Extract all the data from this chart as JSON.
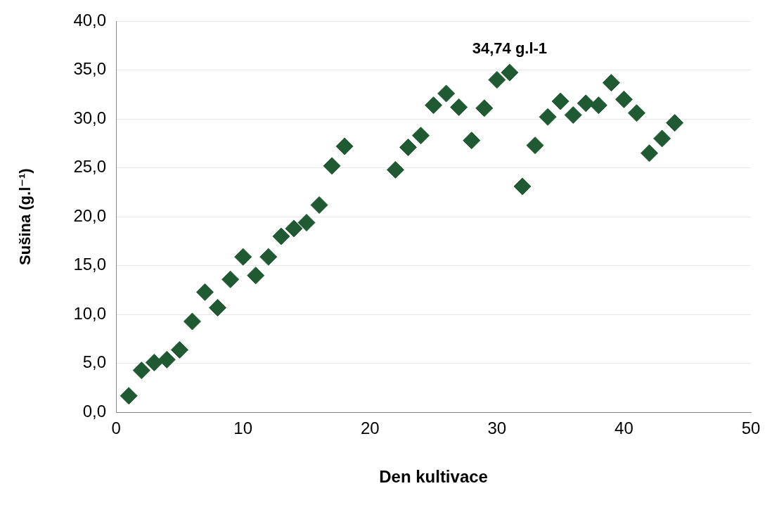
{
  "chart_data": {
    "type": "scatter",
    "xlabel": "Den kultivace",
    "ylabel": "Sušina (g.l⁻¹)",
    "x": [
      1,
      2,
      3,
      4,
      5,
      6,
      7,
      8,
      9,
      10,
      11,
      12,
      13,
      14,
      15,
      16,
      17,
      18,
      22,
      23,
      24,
      25,
      26,
      27,
      28,
      29,
      30,
      31,
      32,
      33,
      34,
      35,
      36,
      37,
      38,
      39,
      40,
      41,
      42,
      43,
      44
    ],
    "series": [
      {
        "color": "#1f5a32",
        "values": [
          1.7,
          4.3,
          5.1,
          5.4,
          6.4,
          9.3,
          12.3,
          10.7,
          13.6,
          15.9,
          14.0,
          15.9,
          18.0,
          18.8,
          19.4,
          21.2,
          25.2,
          27.2,
          24.8,
          27.1,
          28.3,
          31.4,
          32.6,
          31.2,
          27.8,
          31.1,
          34.0,
          34.74,
          23.1,
          27.3,
          30.2,
          31.8,
          30.4,
          31.6,
          31.4,
          33.7,
          32.0,
          30.6,
          26.5,
          28.0,
          29.6
        ]
      }
    ],
    "xlim": [
      0,
      50
    ],
    "xticks": [
      0,
      10,
      20,
      30,
      40,
      50
    ],
    "ylim": [
      0,
      40
    ],
    "yticks": [
      {
        "value": 0,
        "label": "0,0"
      },
      {
        "value": 5,
        "label": "5,0"
      },
      {
        "value": 10,
        "label": "10,0"
      },
      {
        "value": 15,
        "label": "15,0"
      },
      {
        "value": 20,
        "label": "20,0"
      },
      {
        "value": 25,
        "label": "25,0"
      },
      {
        "value": 30,
        "label": "30,0"
      },
      {
        "value": 35,
        "label": "35,0"
      },
      {
        "value": 40,
        "label": "40,0"
      }
    ],
    "grid": "y",
    "legend": false,
    "marker": "diamond",
    "annotations": [
      {
        "text": "34,74 g.l-1",
        "x": 31,
        "y": 34.74
      }
    ]
  }
}
